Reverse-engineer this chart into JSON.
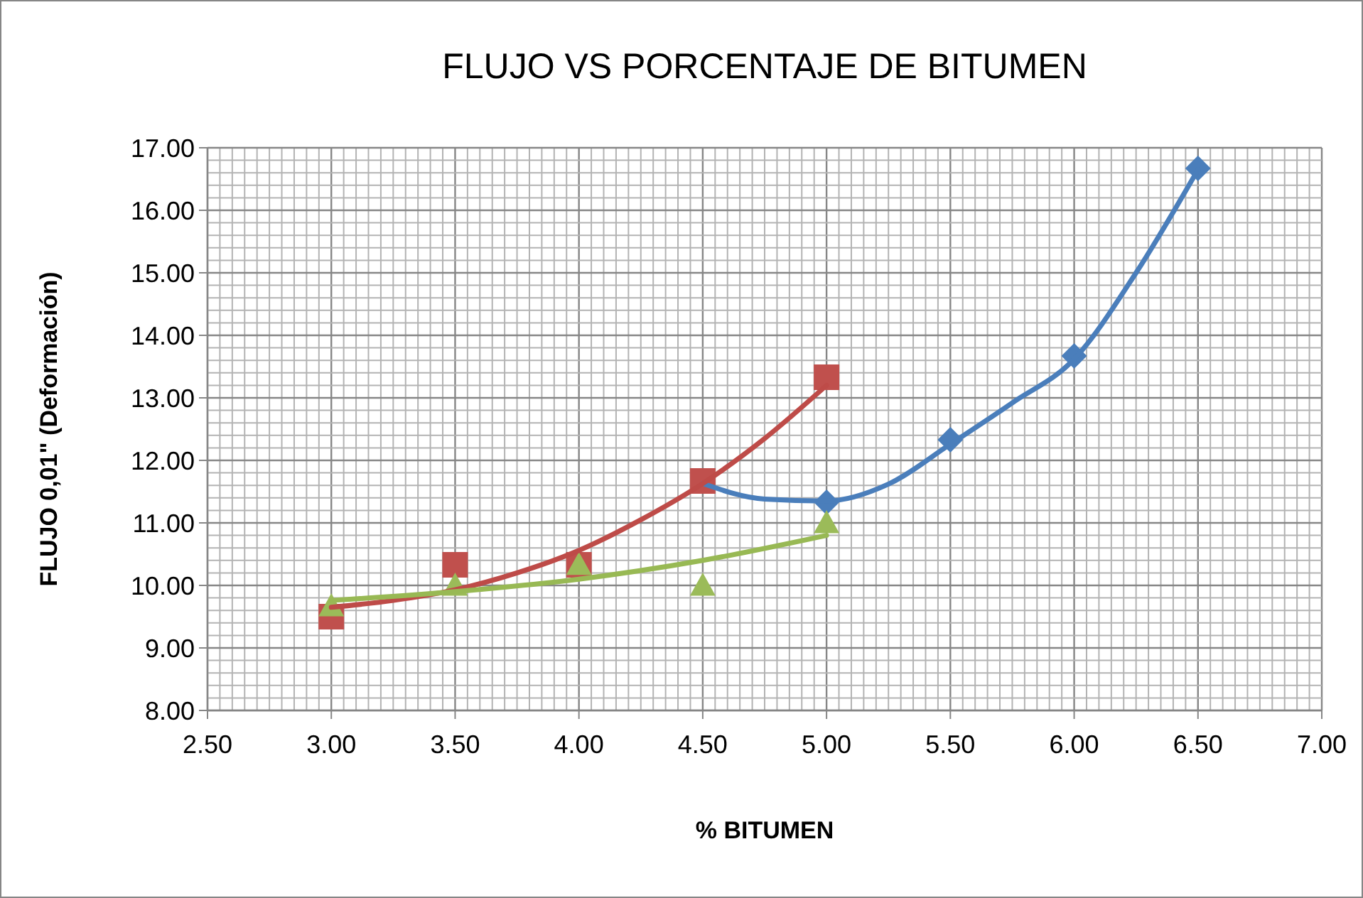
{
  "chart_data": {
    "type": "scatter",
    "title": "FLUJO VS PORCENTAJE DE BITUMEN",
    "xlabel": "% BITUMEN",
    "ylabel": "FLUJO 0,01\" (Deformación)",
    "xlim": [
      2.5,
      7.0
    ],
    "xticks": [
      {
        "value": 2.5,
        "label": "2.50"
      },
      {
        "value": 3,
        "label": "3.00"
      },
      {
        "value": 3.5,
        "label": "3.50"
      },
      {
        "value": 4,
        "label": "4.00"
      },
      {
        "value": 4.5,
        "label": "4.50"
      },
      {
        "value": 5,
        "label": "5.00"
      },
      {
        "value": 5.5,
        "label": "5.50"
      },
      {
        "value": 6,
        "label": "6.00"
      },
      {
        "value": 6.5,
        "label": "6.50"
      },
      {
        "value": 7,
        "label": "7.00"
      }
    ],
    "ylim": [
      8,
      17
    ],
    "yticks": [
      {
        "value": 8,
        "label": "8.00"
      },
      {
        "value": 9,
        "label": "9.00"
      },
      {
        "value": 10,
        "label": "10.00"
      },
      {
        "value": 11,
        "label": "11.00"
      },
      {
        "value": 12,
        "label": "12.00"
      },
      {
        "value": 13,
        "label": "13.00"
      },
      {
        "value": 14,
        "label": "14.00"
      },
      {
        "value": 15,
        "label": "15.00"
      },
      {
        "value": 16,
        "label": "16.00"
      },
      {
        "value": 17,
        "label": "17.00"
      }
    ],
    "grid": true,
    "series": [
      {
        "color": "#4a7ebb",
        "marker": "diamond",
        "x": [
          5.0,
          5.5,
          6.0,
          6.5
        ],
        "values": [
          11.33,
          12.33,
          13.67,
          16.67
        ]
      },
      {
        "color": "#c0504d",
        "marker": "square",
        "x": [
          3.0,
          3.5,
          4.0,
          4.5,
          5.0
        ],
        "values": [
          9.5,
          10.33,
          10.33,
          11.67,
          13.33
        ]
      },
      {
        "color": "#9bbb59",
        "marker": "triangle",
        "x": [
          3.0,
          3.5,
          4.0,
          4.5,
          5.0
        ],
        "values": [
          9.67,
          10.0,
          10.33,
          10.0,
          11.0
        ]
      },
      {
        "type": "line",
        "color": "#4a7ebb",
        "x": [
          4.5,
          4.75,
          5.0,
          5.25,
          5.5,
          5.75,
          6.0,
          6.25,
          6.5
        ],
        "values": [
          11.63,
          11.38,
          11.35,
          11.62,
          12.26,
          12.92,
          13.62,
          15.0,
          16.65
        ]
      },
      {
        "type": "line",
        "color": "#be4b48",
        "x": [
          3.0,
          3.25,
          3.5,
          3.75,
          4.0,
          4.25,
          4.5,
          4.75,
          5.0
        ],
        "values": [
          9.65,
          9.76,
          9.93,
          10.2,
          10.56,
          11.05,
          11.63,
          12.35,
          13.2
        ]
      },
      {
        "type": "line",
        "color": "#98b954",
        "x": [
          3.0,
          3.5,
          4.0,
          4.5,
          5.0
        ],
        "values": [
          9.76,
          9.9,
          10.1,
          10.4,
          10.8
        ]
      }
    ]
  }
}
